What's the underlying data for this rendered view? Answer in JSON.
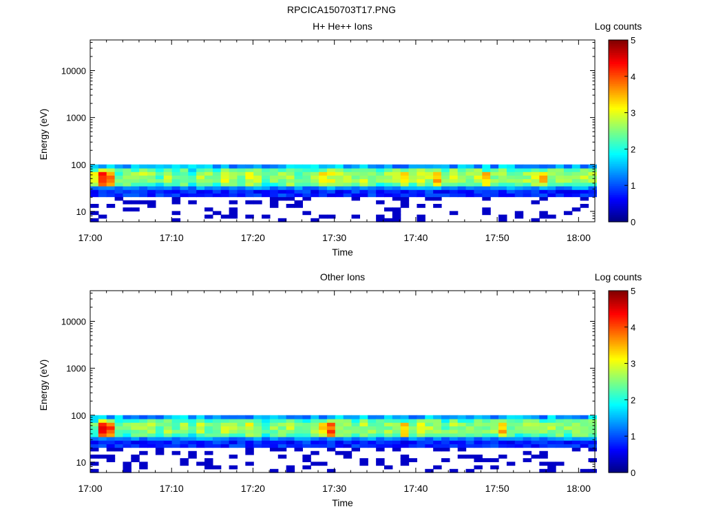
{
  "figure_title": "RPCICA150703T17.PNG",
  "chart_data": [
    {
      "type": "heatmap",
      "title": "H+ He++ Ions",
      "xlabel": "Time",
      "ylabel": "Energy (eV)",
      "x_ticks": [
        "17:00",
        "17:10",
        "17:20",
        "17:30",
        "17:40",
        "17:50",
        "18:00"
      ],
      "x_range": [
        "17:00",
        "18:02"
      ],
      "y_scale": "log",
      "y_ticks": [
        10,
        100,
        1000,
        10000
      ],
      "y_range": [
        6,
        45000
      ],
      "colorbar": {
        "label": "Log counts",
        "ticks": [
          0,
          1,
          2,
          3,
          4,
          5
        ],
        "range": [
          0,
          5
        ],
        "colormap": "jet"
      },
      "data_energy_range": [
        6,
        100
      ],
      "columns": 62,
      "rows": 16,
      "intensity_cols": [
        2.0,
        3.0,
        2.6,
        2.0,
        2.3,
        2.2,
        2.4,
        2.3,
        2.0,
        2.5,
        2.1,
        2.3,
        1.8,
        2.5,
        2.3,
        2.1,
        2.6,
        2.3,
        2.2,
        2.6,
        2.4,
        2.0,
        2.2,
        2.3,
        2.5,
        2.1,
        2.1,
        2.3,
        2.0,
        2.6,
        2.4,
        2.3,
        2.2,
        2.5,
        2.2,
        2.1,
        2.3,
        2.4,
        2.2,
        2.3,
        2.6,
        2.4,
        2.3,
        2.1,
        2.5,
        2.2,
        2.3,
        2.5,
        2.2,
        2.3,
        2.4,
        2.2,
        2.1,
        2.3,
        2.5,
        2.2,
        2.3,
        2.4,
        2.2,
        2.3,
        2.4,
        2.3
      ],
      "peak_cols": [
        0,
        1,
        2,
        28,
        38,
        42,
        48,
        55
      ]
    },
    {
      "type": "heatmap",
      "title": "Other Ions",
      "xlabel": "Time",
      "ylabel": "Energy (eV)",
      "x_ticks": [
        "17:00",
        "17:10",
        "17:20",
        "17:30",
        "17:40",
        "17:50",
        "18:00"
      ],
      "x_range": [
        "17:00",
        "18:02"
      ],
      "y_scale": "log",
      "y_ticks": [
        10,
        100,
        1000,
        10000
      ],
      "y_range": [
        6,
        45000
      ],
      "colorbar": {
        "label": "Log counts",
        "ticks": [
          0,
          1,
          2,
          3,
          4,
          5
        ],
        "range": [
          0,
          5
        ],
        "colormap": "jet"
      },
      "data_energy_range": [
        6,
        100
      ],
      "columns": 62,
      "rows": 16,
      "intensity_cols": [
        2.0,
        3.1,
        2.8,
        2.0,
        2.1,
        2.2,
        2.3,
        2.3,
        2.0,
        2.4,
        2.1,
        2.3,
        1.8,
        2.4,
        2.2,
        2.1,
        2.5,
        2.3,
        2.2,
        2.6,
        2.3,
        2.0,
        2.2,
        2.3,
        2.4,
        2.1,
        2.0,
        2.3,
        2.0,
        2.7,
        2.4,
        2.3,
        2.2,
        2.4,
        2.2,
        2.1,
        2.3,
        2.4,
        2.2,
        2.3,
        2.5,
        2.4,
        2.3,
        2.1,
        2.4,
        2.2,
        2.3,
        2.4,
        2.2,
        2.3,
        2.3,
        2.2,
        2.1,
        2.3,
        2.5,
        2.2,
        2.3,
        2.4,
        2.2,
        2.3,
        2.3,
        2.3
      ],
      "peak_cols": [
        1,
        2,
        28,
        29,
        38,
        50
      ]
    }
  ]
}
